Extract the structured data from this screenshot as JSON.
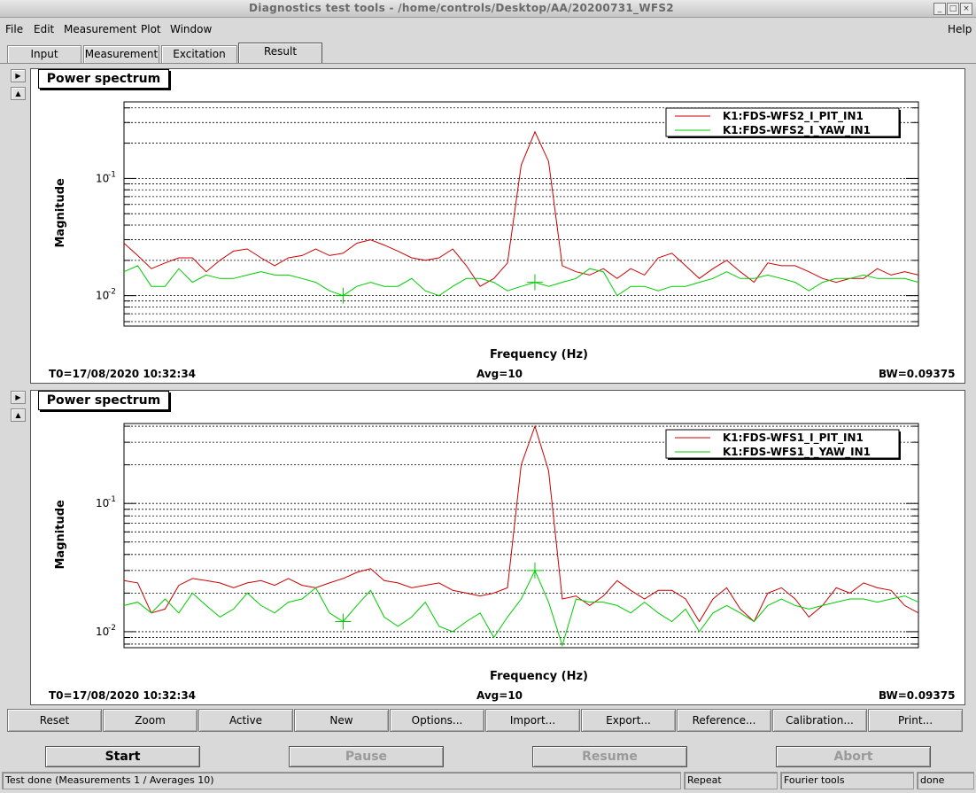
{
  "window": {
    "title": "Diagnostics test tools - /home/controls/Desktop/AA/20200731_WFS2"
  },
  "menu": {
    "file": "File",
    "edit": "Edit",
    "measurement": "Measurement",
    "plot": "Plot",
    "window": "Window",
    "help": "Help"
  },
  "tabs": [
    "Input",
    "Measurement",
    "Excitation",
    "Result"
  ],
  "active_tab": "Result",
  "colors": {
    "series_pit": "#cc0000",
    "series_yaw": "#00cc00",
    "background": "#d9d9d9"
  },
  "plots": [
    {
      "title": "Power spectrum",
      "ylabel": "Magnitude",
      "xlabel": "Frequency (Hz)",
      "t0": "T0=17/08/2020 10:32:34",
      "avg": "Avg=10",
      "bw": "BW=0.09375",
      "tick_hi": "10",
      "tick_hi_exp": "-1",
      "tick_lo": "10",
      "tick_lo_exp": "-2",
      "legend": [
        "K1:FDS-WFS2_I_PIT_IN1",
        "K1:FDS-WFS2_I_YAW_IN1"
      ]
    },
    {
      "title": "Power spectrum",
      "ylabel": "Magnitude",
      "xlabel": "Frequency (Hz)",
      "t0": "T0=17/08/2020 10:32:34",
      "avg": "Avg=10",
      "bw": "BW=0.09375",
      "tick_hi": "10",
      "tick_hi_exp": "-1",
      "tick_lo": "10",
      "tick_lo_exp": "-2",
      "legend": [
        "K1:FDS-WFS1_I_PIT_IN1",
        "K1:FDS-WFS1_I_YAW_IN1"
      ]
    }
  ],
  "chart_data": [
    {
      "type": "line",
      "title": "Power spectrum",
      "xlabel": "Frequency (Hz)",
      "ylabel": "Magnitude",
      "yscale": "log",
      "ylim": [
        0.0055,
        0.45
      ],
      "x_index_range": [
        0,
        58
      ],
      "grid": true,
      "legend_position": "top-right",
      "series": [
        {
          "name": "K1:FDS-WFS2_I_PIT_IN1",
          "color": "#cc0000",
          "values": [
            0.028,
            0.022,
            0.017,
            0.019,
            0.021,
            0.021,
            0.016,
            0.02,
            0.024,
            0.025,
            0.021,
            0.018,
            0.021,
            0.022,
            0.025,
            0.022,
            0.023,
            0.028,
            0.03,
            0.027,
            0.024,
            0.021,
            0.02,
            0.021,
            0.025,
            0.018,
            0.012,
            0.014,
            0.019,
            0.13,
            0.25,
            0.14,
            0.018,
            0.016,
            0.015,
            0.017,
            0.014,
            0.017,
            0.015,
            0.021,
            0.023,
            0.018,
            0.014,
            0.017,
            0.02,
            0.016,
            0.013,
            0.019,
            0.018,
            0.018,
            0.016,
            0.014,
            0.013,
            0.014,
            0.014,
            0.017,
            0.015,
            0.016,
            0.015
          ]
        },
        {
          "name": "K1:FDS-WFS2_I_YAW_IN1",
          "color": "#00cc00",
          "values": [
            0.016,
            0.018,
            0.012,
            0.012,
            0.017,
            0.013,
            0.015,
            0.014,
            0.014,
            0.015,
            0.016,
            0.015,
            0.015,
            0.014,
            0.013,
            0.011,
            0.01,
            0.012,
            0.013,
            0.012,
            0.012,
            0.014,
            0.011,
            0.01,
            0.012,
            0.014,
            0.014,
            0.013,
            0.011,
            0.012,
            0.013,
            0.012,
            0.013,
            0.014,
            0.017,
            0.016,
            0.01,
            0.012,
            0.012,
            0.011,
            0.012,
            0.012,
            0.013,
            0.014,
            0.016,
            0.014,
            0.014,
            0.015,
            0.014,
            0.013,
            0.011,
            0.013,
            0.014,
            0.014,
            0.015,
            0.014,
            0.014,
            0.014,
            0.013
          ]
        }
      ]
    },
    {
      "type": "line",
      "title": "Power spectrum",
      "xlabel": "Frequency (Hz)",
      "ylabel": "Magnitude",
      "yscale": "log",
      "ylim": [
        0.0075,
        0.42
      ],
      "x_index_range": [
        0,
        58
      ],
      "grid": true,
      "legend_position": "top-right",
      "series": [
        {
          "name": "K1:FDS-WFS1_I_PIT_IN1",
          "color": "#cc0000",
          "values": [
            0.025,
            0.024,
            0.014,
            0.015,
            0.023,
            0.026,
            0.025,
            0.024,
            0.022,
            0.024,
            0.025,
            0.023,
            0.026,
            0.023,
            0.022,
            0.024,
            0.026,
            0.029,
            0.031,
            0.025,
            0.024,
            0.022,
            0.023,
            0.024,
            0.021,
            0.02,
            0.019,
            0.02,
            0.022,
            0.2,
            0.4,
            0.18,
            0.018,
            0.019,
            0.016,
            0.019,
            0.025,
            0.021,
            0.018,
            0.021,
            0.021,
            0.018,
            0.012,
            0.018,
            0.022,
            0.015,
            0.012,
            0.02,
            0.022,
            0.018,
            0.013,
            0.016,
            0.022,
            0.02,
            0.024,
            0.022,
            0.021,
            0.016,
            0.014
          ]
        },
        {
          "name": "K1:FDS-WFS1_I_YAW_IN1",
          "color": "#00cc00",
          "values": [
            0.016,
            0.017,
            0.014,
            0.018,
            0.014,
            0.02,
            0.016,
            0.013,
            0.015,
            0.02,
            0.016,
            0.014,
            0.017,
            0.018,
            0.022,
            0.014,
            0.012,
            0.016,
            0.021,
            0.013,
            0.011,
            0.013,
            0.017,
            0.011,
            0.01,
            0.012,
            0.014,
            0.009,
            0.013,
            0.018,
            0.03,
            0.017,
            0.0078,
            0.018,
            0.017,
            0.017,
            0.016,
            0.014,
            0.017,
            0.014,
            0.012,
            0.015,
            0.01,
            0.014,
            0.016,
            0.014,
            0.012,
            0.016,
            0.018,
            0.016,
            0.015,
            0.016,
            0.017,
            0.018,
            0.018,
            0.017,
            0.018,
            0.019,
            0.017
          ]
        }
      ]
    }
  ],
  "toolbar": [
    "Reset",
    "Zoom",
    "Active",
    "New",
    "Options...",
    "Import...",
    "Export...",
    "Reference...",
    "Calibration...",
    "Print..."
  ],
  "controls": {
    "start": "Start",
    "pause": "Pause",
    "resume": "Resume",
    "abort": "Abort"
  },
  "status": {
    "message": "Test done (Measurements 1 / Averages 10)",
    "repeat": "Repeat",
    "tool": "Fourier tools",
    "state": "done"
  }
}
